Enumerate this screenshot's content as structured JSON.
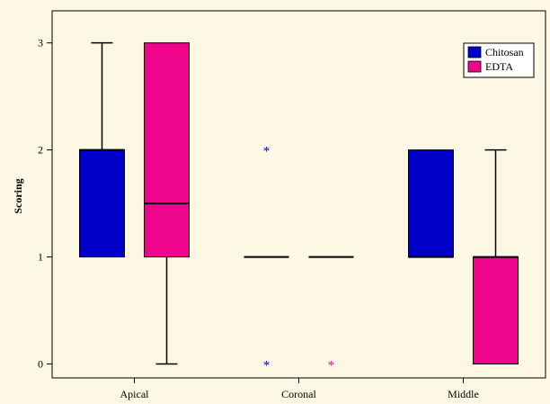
{
  "chart_data": {
    "type": "boxplot",
    "title": "",
    "xlabel": "",
    "ylabel": "Scoring",
    "ylim": [
      -0.13,
      3.3
    ],
    "yticks": [
      0,
      1,
      2,
      3
    ],
    "categories": [
      "Apical",
      "Coronal",
      "Middle"
    ],
    "legend": {
      "placement": "top-right"
    },
    "series": [
      {
        "name": "Chitosan",
        "color": "#0000c8",
        "boxes": [
          {
            "category": "Apical",
            "min": 1,
            "q1": 1,
            "median": 2,
            "q3": 2,
            "max": 3,
            "outliers": []
          },
          {
            "category": "Coronal",
            "min": 1,
            "q1": 1,
            "median": 1,
            "q3": 1,
            "max": 1,
            "outliers": [
              0,
              2
            ]
          },
          {
            "category": "Middle",
            "min": 1,
            "q1": 1,
            "median": 1,
            "q3": 2,
            "max": 2,
            "outliers": []
          }
        ]
      },
      {
        "name": "EDTA",
        "color": "#f0068c",
        "boxes": [
          {
            "category": "Apical",
            "min": 0,
            "q1": 1,
            "median": 1.5,
            "q3": 3,
            "max": 3,
            "outliers": []
          },
          {
            "category": "Coronal",
            "min": 1,
            "q1": 1,
            "median": 1,
            "q3": 1,
            "max": 1,
            "outliers": [
              0
            ]
          },
          {
            "category": "Middle",
            "min": 0,
            "q1": 0,
            "median": 1,
            "q3": 1,
            "max": 2,
            "outliers": []
          }
        ]
      }
    ]
  }
}
